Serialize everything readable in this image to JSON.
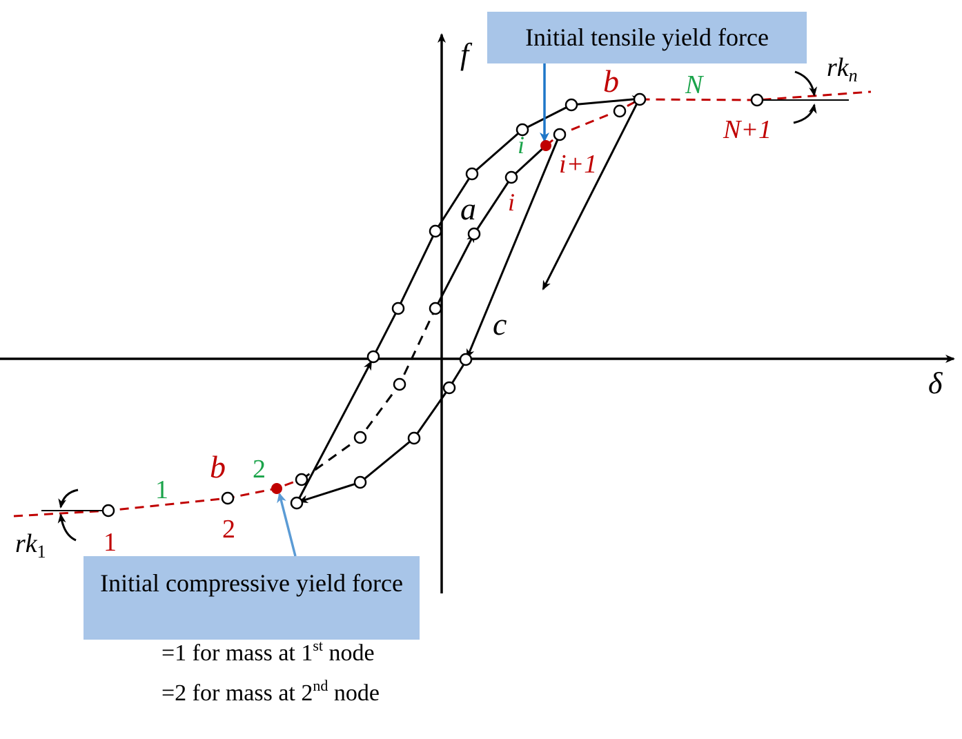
{
  "axes": {
    "y_label": "f",
    "x_label": "δ"
  },
  "callouts": {
    "tensile": "Initial tensile yield force",
    "compressive": "Initial compressive yield force"
  },
  "curve_labels": {
    "a": "a",
    "b_upper": "b",
    "b_lower": "b",
    "c": "c"
  },
  "spring_labels": {
    "rk1_base": "rk",
    "rk1_sub": "1",
    "rkn_base": "rk",
    "rkn_sub": "n"
  },
  "element_labels": {
    "upper_i": "i",
    "upper_N": "N",
    "lower_1": "1",
    "lower_2": "2"
  },
  "node_labels": {
    "upper_i": "i",
    "upper_i_plus_1": "i+1",
    "upper_N_plus_1": "N+1",
    "lower_1": "1",
    "lower_2": "2"
  },
  "notes": [
    {
      "prefix": "=1 for mass at 1",
      "sup": "st",
      "suffix": " node"
    },
    {
      "prefix": "=2 for mass at 2",
      "sup": "nd",
      "suffix": " node"
    }
  ],
  "colors": {
    "curve": "#000000",
    "backbone": "#c00000",
    "node_label": "#c00000",
    "element_label": "#1aa34a",
    "callout_fill": "#a8c5e8",
    "callout_arrow": "#1f77c8"
  }
}
